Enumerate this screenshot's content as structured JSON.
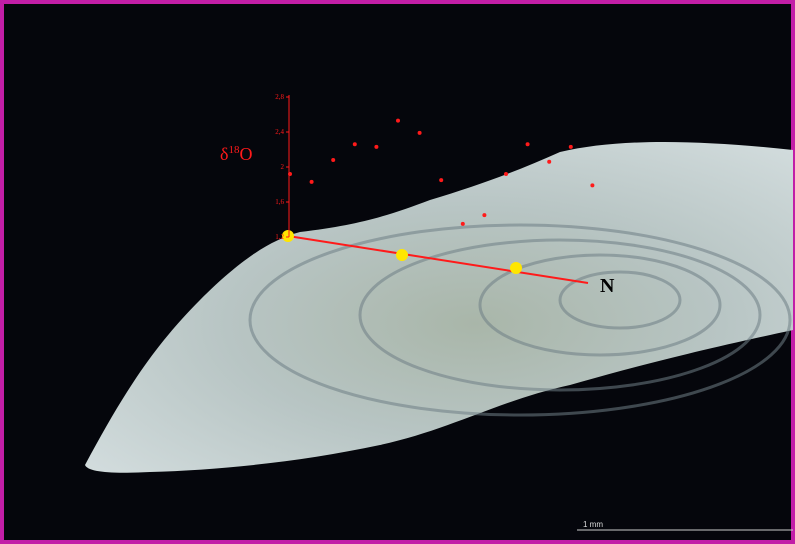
{
  "chart_data": {
    "type": "scatter",
    "ylabel": [
      "δ",
      "18",
      "O"
    ],
    "categories": [
      null,
      null,
      null,
      null,
      null,
      null,
      null,
      null,
      null,
      null,
      null,
      null,
      null,
      null,
      null
    ],
    "values": [
      1.92,
      1.83,
      2.08,
      2.26,
      2.23,
      2.53,
      2.39,
      1.85,
      1.35,
      1.45,
      1.92,
      2.26,
      2.06,
      2.23,
      1.79
    ],
    "color": "#ff1a1a",
    "ylim": [
      1.2,
      2.8
    ],
    "yticks": [
      {
        "value": 1.2,
        "label": "1,2"
      },
      {
        "value": 1.6,
        "label": "1,6"
      },
      2,
      {
        "value": 2.4,
        "label": "2,4"
      },
      {
        "value": 2.8,
        "label": "2,8"
      }
    ]
  },
  "annotations": {
    "direction": "N",
    "scale_bar": "1 mm"
  }
}
